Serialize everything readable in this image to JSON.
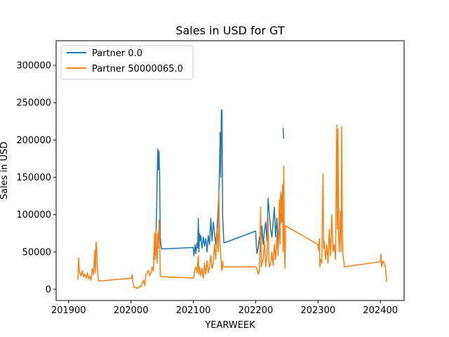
{
  "chart_data": {
    "type": "line",
    "title": "Sales in USD for GT",
    "xlabel": "YEARWEEK",
    "ylabel": "Sales in USD",
    "xlim": [
      201880,
      202438
    ],
    "ylim": [
      -15000,
      333000
    ],
    "xticks": [
      201900,
      202000,
      202100,
      202200,
      202300,
      202400
    ],
    "yticks": [
      0,
      50000,
      100000,
      150000,
      200000,
      250000,
      300000
    ],
    "grid": false,
    "legend": "top-left",
    "colors": {
      "Partner 0.0": "#1f77b4",
      "Partner 50000065.0": "#ff7f0e"
    },
    "series": [
      {
        "name": "Partner 0.0",
        "segments": [
          [
            [
              202036,
              40000
            ],
            [
              202038,
              50000
            ],
            [
              202040,
              70000
            ],
            [
              202041,
              100000
            ],
            [
              202042,
              150000
            ],
            [
              202043,
              188000
            ],
            [
              202044,
              160000
            ],
            [
              202045,
              185000
            ],
            [
              202046,
              150000
            ],
            [
              202047,
              70000
            ],
            [
              202048,
              60000
            ],
            [
              202049,
              54000
            ],
            [
              202100,
              56000
            ],
            [
              202101,
              45000
            ],
            [
              202103,
              60000
            ],
            [
              202104,
              48000
            ],
            [
              202106,
              62000
            ],
            [
              202107,
              55000
            ],
            [
              202108,
              95000
            ],
            [
              202109,
              50000
            ],
            [
              202110,
              75000
            ],
            [
              202111,
              65000
            ],
            [
              202112,
              72000
            ],
            [
              202114,
              55000
            ],
            [
              202116,
              70000
            ],
            [
              202118,
              58000
            ],
            [
              202120,
              68000
            ],
            [
              202122,
              50000
            ],
            [
              202124,
              72000
            ],
            [
              202126,
              60000
            ],
            [
              202128,
              95000
            ],
            [
              202130,
              65000
            ],
            [
              202132,
              90000
            ],
            [
              202134,
              75000
            ],
            [
              202136,
              60000
            ],
            [
              202138,
              80000
            ],
            [
              202140,
              110000
            ],
            [
              202141,
              130000
            ],
            [
              202142,
              160000
            ],
            [
              202143,
              210000
            ],
            [
              202144,
              150000
            ],
            [
              202145,
              240000
            ],
            [
              202146,
              240000
            ],
            [
              202147,
              100000
            ],
            [
              202148,
              80000
            ],
            [
              202149,
              62000
            ],
            [
              202200,
              78000
            ],
            [
              202201,
              60000
            ],
            [
              202202,
              48000
            ],
            [
              202204,
              55000
            ],
            [
              202206,
              70000
            ],
            [
              202208,
              50000
            ],
            [
              202210,
              85000
            ],
            [
              202212,
              60000
            ],
            [
              202214,
              78000
            ],
            [
              202216,
              90000
            ],
            [
              202218,
              65000
            ],
            [
              202220,
              122000
            ],
            [
              202222,
              100000
            ],
            [
              202224,
              80000
            ],
            [
              202226,
              70000
            ],
            [
              202228,
              90000
            ],
            [
              202230,
              110000
            ],
            [
              202232,
              70000
            ],
            [
              202234,
              95000
            ],
            [
              202236,
              60000
            ],
            [
              202238,
              80000
            ],
            [
              202240,
              90000
            ],
            [
              202241,
              125000
            ],
            [
              202242,
              110000
            ],
            [
              202243,
              135000
            ]
          ],
          [
            [
              202244,
              216000
            ],
            [
              202245,
              202000
            ]
          ]
        ]
      },
      {
        "name": "Partner 50000065.0",
        "segments": [
          [
            [
              201915,
              13000
            ],
            [
              201916,
              42000
            ],
            [
              201917,
              30000
            ],
            [
              201918,
              22000
            ],
            [
              201920,
              18000
            ],
            [
              201922,
              25000
            ],
            [
              201924,
              17000
            ],
            [
              201926,
              20000
            ],
            [
              201928,
              15000
            ],
            [
              201930,
              22000
            ],
            [
              201932,
              14000
            ],
            [
              201934,
              18000
            ],
            [
              201936,
              12000
            ],
            [
              201938,
              28000
            ],
            [
              201940,
              20000
            ],
            [
              201942,
              52000
            ],
            [
              201943,
              22000
            ],
            [
              201944,
              63000
            ],
            [
              201945,
              55000
            ],
            [
              201946,
              30000
            ],
            [
              201948,
              11000
            ],
            [
              202001,
              15000
            ],
            [
              202002,
              20000
            ],
            [
              202003,
              10000
            ],
            [
              202005,
              2000
            ],
            [
              202008,
              3000
            ],
            [
              202010,
              1000
            ],
            [
              202012,
              2000
            ],
            [
              202014,
              4000
            ],
            [
              202016,
              3000
            ],
            [
              202018,
              8000
            ],
            [
              202020,
              12000
            ],
            [
              202022,
              5000
            ],
            [
              202024,
              20000
            ],
            [
              202026,
              22000
            ],
            [
              202028,
              25000
            ],
            [
              202030,
              18000
            ],
            [
              202032,
              22000
            ],
            [
              202034,
              30000
            ],
            [
              202036,
              24000
            ],
            [
              202038,
              75000
            ],
            [
              202039,
              40000
            ],
            [
              202040,
              80000
            ],
            [
              202041,
              50000
            ],
            [
              202042,
              35000
            ],
            [
              202043,
              75000
            ],
            [
              202044,
              55000
            ],
            [
              202045,
              93000
            ],
            [
              202046,
              70000
            ],
            [
              202047,
              20000
            ],
            [
              202048,
              17000
            ],
            [
              202100,
              15000
            ],
            [
              202101,
              18000
            ],
            [
              202102,
              25000
            ],
            [
              202104,
              30000
            ],
            [
              202106,
              22000
            ],
            [
              202108,
              45000
            ],
            [
              202109,
              20000
            ],
            [
              202110,
              30000
            ],
            [
              202112,
              18000
            ],
            [
              202114,
              28000
            ],
            [
              202116,
              15000
            ],
            [
              202118,
              35000
            ],
            [
              202120,
              20000
            ],
            [
              202122,
              38000
            ],
            [
              202124,
              22000
            ],
            [
              202126,
              30000
            ],
            [
              202128,
              45000
            ],
            [
              202130,
              28000
            ],
            [
              202132,
              35000
            ],
            [
              202134,
              60000
            ],
            [
              202136,
              40000
            ],
            [
              202138,
              80000
            ],
            [
              202140,
              50000
            ],
            [
              202141,
              132000
            ],
            [
              202142,
              70000
            ],
            [
              202144,
              45000
            ],
            [
              202145,
              30000
            ],
            [
              202146,
              25000
            ],
            [
              202147,
              38000
            ],
            [
              202148,
              30000
            ],
            [
              202200,
              30000
            ],
            [
              202202,
              28000
            ],
            [
              202204,
              20000
            ],
            [
              202206,
              25000
            ],
            [
              202208,
              110000
            ],
            [
              202209,
              30000
            ],
            [
              202210,
              35000
            ],
            [
              202212,
              40000
            ],
            [
              202214,
              65000
            ],
            [
              202216,
              30000
            ],
            [
              202218,
              45000
            ],
            [
              202220,
              95000
            ],
            [
              202221,
              40000
            ],
            [
              202222,
              30000
            ],
            [
              202224,
              35000
            ],
            [
              202226,
              50000
            ],
            [
              202228,
              32000
            ],
            [
              202230,
              60000
            ],
            [
              202232,
              40000
            ],
            [
              202234,
              72000
            ],
            [
              202236,
              45000
            ],
            [
              202238,
              120000
            ],
            [
              202239,
              60000
            ],
            [
              202240,
              130000
            ],
            [
              202242,
              90000
            ],
            [
              202243,
              140000
            ],
            [
              202244,
              50000
            ],
            [
              202245,
              165000
            ],
            [
              202246,
              60000
            ],
            [
              202247,
              28000
            ],
            [
              202248,
              85000
            ],
            [
              202300,
              60000
            ],
            [
              202301,
              52000
            ],
            [
              202302,
              68000
            ],
            [
              202303,
              30000
            ],
            [
              202304,
              40000
            ],
            [
              202306,
              35000
            ],
            [
              202308,
              155000
            ],
            [
              202309,
              55000
            ],
            [
              202310,
              65000
            ],
            [
              202312,
              40000
            ],
            [
              202314,
              60000
            ],
            [
              202316,
              35000
            ],
            [
              202318,
              80000
            ],
            [
              202320,
              45000
            ],
            [
              202322,
              100000
            ],
            [
              202324,
              50000
            ],
            [
              202326,
              60000
            ],
            [
              202328,
              40000
            ],
            [
              202330,
              220000
            ],
            [
              202331,
              80000
            ],
            [
              202332,
              215000
            ],
            [
              202333,
              70000
            ],
            [
              202334,
              50000
            ],
            [
              202336,
              105000
            ],
            [
              202337,
              50000
            ],
            [
              202338,
              218000
            ],
            [
              202339,
              80000
            ],
            [
              202340,
              45000
            ],
            [
              202341,
              40000
            ],
            [
              202342,
              30000
            ],
            [
              202400,
              37000
            ],
            [
              202401,
              47000
            ],
            [
              202402,
              30000
            ],
            [
              202404,
              38000
            ],
            [
              202406,
              35000
            ],
            [
              202408,
              30000
            ],
            [
              202410,
              10000
            ]
          ]
        ]
      }
    ]
  }
}
